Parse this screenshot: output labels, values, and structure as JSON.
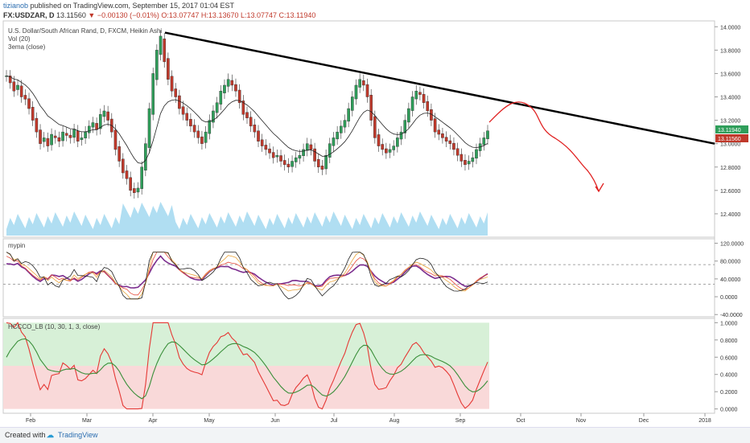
{
  "header": {
    "author": "tizianob",
    "published": "published on TradingView.com, September 15, 2017 01:04 EST",
    "symbol": "FX:USDZAR, D",
    "last": "13.11560",
    "change": "▼ −0.00130 (−0.01%)",
    "ohlc": "O:13.07747 H:13.13670 L:13.07747 C:13.11940"
  },
  "legend": {
    "title": "U.S. Dollar/South African Rand, D, FXCM, Heikin Ashi",
    "vol": "Vol (20)",
    "ema": "3ema (close)",
    "pane2": "mypin",
    "pane3": "HCCCO_LB (10, 30, 1, 3, close)"
  },
  "footer": {
    "created": "Created with",
    "brand": "TradingView"
  },
  "colors": {
    "up": "#2f9e5a",
    "down": "#c0392b",
    "volume": "#8fd0ec",
    "trend": "#000000",
    "projection": "#e02020",
    "pane3_green": "#d7f0d7",
    "pane3_red": "#f9d9d9"
  },
  "chart_data": [
    {
      "type": "candlestick",
      "title": "U.S. Dollar/South African Rand, D, FXCM, Heikin Ashi",
      "x_ticks": [
        "Feb",
        "Mar",
        "Apr",
        "May",
        "Jun",
        "Jul",
        "Aug",
        "Sep",
        "Oct",
        "Nov",
        "Dec",
        "2018"
      ],
      "y_ticks": [
        "14.0000",
        "13.8000",
        "13.6000",
        "13.4000",
        "13.2000",
        "13.0000",
        "12.8000",
        "12.6000",
        "12.4000"
      ],
      "ylim": [
        12.2,
        14.05
      ],
      "last_price_labels": [
        "13.11940",
        "13.11560"
      ],
      "close_series": [
        13.58,
        13.52,
        13.45,
        13.5,
        13.4,
        13.38,
        13.3,
        13.2,
        13.1,
        13.0,
        13.05,
        12.98,
        13.08,
        13.05,
        13.02,
        13.1,
        13.07,
        13.05,
        13.12,
        13.02,
        13.05,
        13.1,
        13.15,
        13.18,
        13.12,
        13.25,
        13.28,
        13.2,
        13.1,
        12.95,
        12.85,
        12.75,
        12.7,
        12.6,
        12.58,
        12.62,
        12.8,
        13.0,
        13.3,
        13.6,
        13.8,
        13.92,
        13.7,
        13.55,
        13.45,
        13.4,
        13.3,
        13.25,
        13.2,
        13.15,
        13.1,
        13.05,
        13.0,
        13.1,
        13.2,
        13.28,
        13.35,
        13.45,
        13.5,
        13.55,
        13.5,
        13.45,
        13.35,
        13.25,
        13.22,
        13.15,
        13.1,
        13.02,
        12.98,
        12.95,
        12.92,
        12.88,
        12.9,
        12.85,
        12.82,
        12.8,
        12.85,
        12.88,
        12.9,
        12.95,
        13.0,
        12.95,
        12.85,
        12.8,
        12.78,
        12.9,
        13.0,
        13.05,
        13.1,
        13.15,
        13.2,
        13.3,
        13.4,
        13.5,
        13.55,
        13.5,
        13.4,
        13.2,
        13.05,
        12.98,
        12.95,
        12.92,
        12.95,
        12.98,
        13.05,
        13.1,
        13.2,
        13.3,
        13.4,
        13.45,
        13.42,
        13.35,
        13.28,
        13.2,
        13.1,
        13.08,
        13.05,
        13.02,
        13.0,
        12.95,
        12.9,
        12.85,
        12.82,
        12.85,
        12.88,
        12.95,
        13.0,
        13.05,
        13.11
      ],
      "volume": [
        1,
        1,
        1,
        1,
        1,
        1,
        1,
        1,
        1,
        1,
        1,
        1,
        1,
        1,
        1,
        1,
        1,
        1,
        1,
        1,
        1,
        1,
        1,
        1,
        1,
        1,
        1,
        1,
        1,
        1,
        1,
        1,
        1,
        1,
        1,
        1,
        1,
        1,
        1,
        1,
        1,
        1,
        1,
        1,
        1,
        1,
        1,
        1,
        1,
        1,
        1,
        1,
        1,
        1,
        1,
        1,
        1,
        1,
        1,
        1,
        1,
        1,
        1,
        1,
        1,
        1,
        1,
        1,
        1,
        1,
        1,
        1,
        1,
        1,
        1,
        1,
        1,
        1,
        1,
        1,
        1,
        1,
        1,
        1,
        1,
        1,
        1,
        1,
        1,
        1,
        1,
        1,
        1,
        1,
        1,
        1,
        1,
        1,
        1,
        1,
        1,
        1,
        1,
        1,
        1,
        1,
        1,
        1,
        1,
        1,
        1,
        1,
        1,
        1,
        1,
        1,
        1,
        1,
        1,
        1,
        1,
        1,
        1,
        1,
        1,
        1,
        1,
        1,
        1,
        1,
        1
      ],
      "trendline": [
        {
          "date": "Apr",
          "y": 13.95
        },
        {
          "date": "2018",
          "y": 13.0
        }
      ]
    },
    {
      "type": "line",
      "title": "mypin",
      "y_ticks": [
        "120.0000",
        "80.0000",
        "40.0000",
        "0.0000",
        "-40.0000"
      ],
      "ylim": [
        -45,
        130
      ],
      "levels": [
        72,
        28
      ]
    },
    {
      "type": "line",
      "title": "HCCCO_LB (10, 30, 1, 3, close)",
      "y_ticks": [
        "1.0000",
        "0.8000",
        "0.6000",
        "0.4000",
        "0.2000",
        "0.0000"
      ],
      "ylim": [
        -0.05,
        1.05
      ],
      "green_zone": [
        0.5,
        1.0
      ],
      "red_zone": [
        0.0,
        0.5
      ]
    }
  ]
}
